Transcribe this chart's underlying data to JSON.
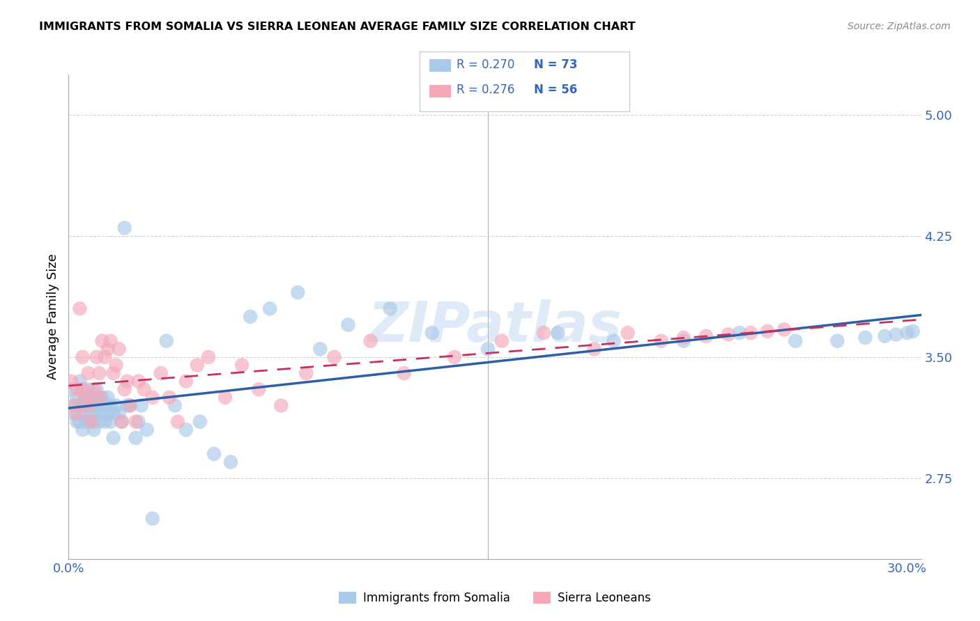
{
  "title": "IMMIGRANTS FROM SOMALIA VS SIERRA LEONEAN AVERAGE FAMILY SIZE CORRELATION CHART",
  "source": "Source: ZipAtlas.com",
  "ylabel": "Average Family Size",
  "yticks": [
    2.75,
    3.5,
    4.25,
    5.0
  ],
  "xlim": [
    0.0,
    0.305
  ],
  "ylim": [
    2.25,
    5.25
  ],
  "legend_r1": "0.270",
  "legend_n1": "73",
  "legend_r2": "0.276",
  "legend_n2": "56",
  "color_somalia": "#aac8e8",
  "color_sierra": "#f4a8b8",
  "color_somalia_line": "#2c5fa8",
  "color_sierra_line": "#c83060",
  "color_blue": "#3366bb",
  "watermark": "ZIPatlas",
  "somalia_x": [
    0.001,
    0.002,
    0.002,
    0.003,
    0.003,
    0.004,
    0.004,
    0.004,
    0.005,
    0.005,
    0.005,
    0.006,
    0.006,
    0.006,
    0.007,
    0.007,
    0.007,
    0.008,
    0.008,
    0.009,
    0.009,
    0.009,
    0.01,
    0.01,
    0.01,
    0.011,
    0.011,
    0.012,
    0.012,
    0.013,
    0.013,
    0.014,
    0.014,
    0.015,
    0.015,
    0.016,
    0.016,
    0.017,
    0.018,
    0.019,
    0.02,
    0.021,
    0.022,
    0.024,
    0.025,
    0.026,
    0.028,
    0.03,
    0.035,
    0.038,
    0.042,
    0.047,
    0.052,
    0.058,
    0.065,
    0.072,
    0.082,
    0.09,
    0.1,
    0.115,
    0.13,
    0.15,
    0.175,
    0.195,
    0.22,
    0.24,
    0.26,
    0.275,
    0.285,
    0.292,
    0.296,
    0.3,
    0.302
  ],
  "somalia_y": [
    3.3,
    3.2,
    3.15,
    3.1,
    3.25,
    3.35,
    3.2,
    3.1,
    3.3,
    3.15,
    3.05,
    3.25,
    3.2,
    3.1,
    3.3,
    3.2,
    3.1,
    3.25,
    3.15,
    3.05,
    3.2,
    3.1,
    3.25,
    3.15,
    3.3,
    3.2,
    3.1,
    3.25,
    3.15,
    3.2,
    3.1,
    3.25,
    3.15,
    3.1,
    3.2,
    3.0,
    3.15,
    3.2,
    3.15,
    3.1,
    4.3,
    3.2,
    3.2,
    3.0,
    3.1,
    3.2,
    3.05,
    2.5,
    3.6,
    3.2,
    3.05,
    3.1,
    2.9,
    2.85,
    3.75,
    3.8,
    3.9,
    3.55,
    3.7,
    3.8,
    3.65,
    3.55,
    3.65,
    3.6,
    3.6,
    3.65,
    3.6,
    3.6,
    3.62,
    3.63,
    3.64,
    3.65,
    3.66
  ],
  "sierra_x": [
    0.001,
    0.002,
    0.003,
    0.003,
    0.004,
    0.005,
    0.005,
    0.006,
    0.007,
    0.007,
    0.008,
    0.009,
    0.01,
    0.011,
    0.011,
    0.012,
    0.013,
    0.014,
    0.015,
    0.016,
    0.017,
    0.018,
    0.019,
    0.02,
    0.021,
    0.022,
    0.024,
    0.025,
    0.027,
    0.03,
    0.033,
    0.036,
    0.039,
    0.042,
    0.046,
    0.05,
    0.056,
    0.062,
    0.068,
    0.076,
    0.085,
    0.095,
    0.108,
    0.12,
    0.138,
    0.155,
    0.17,
    0.188,
    0.2,
    0.212,
    0.22,
    0.228,
    0.236,
    0.244,
    0.25,
    0.256
  ],
  "sierra_y": [
    3.35,
    3.2,
    3.3,
    3.15,
    3.8,
    3.3,
    3.5,
    3.25,
    3.4,
    3.2,
    3.1,
    3.3,
    3.5,
    3.4,
    3.25,
    3.6,
    3.5,
    3.55,
    3.6,
    3.4,
    3.45,
    3.55,
    3.1,
    3.3,
    3.35,
    3.2,
    3.1,
    3.35,
    3.3,
    3.25,
    3.4,
    3.25,
    3.1,
    3.35,
    3.45,
    3.5,
    3.25,
    3.45,
    3.3,
    3.2,
    3.4,
    3.5,
    3.6,
    3.4,
    3.5,
    3.6,
    3.65,
    3.55,
    3.65,
    3.6,
    3.62,
    3.63,
    3.64,
    3.65,
    3.66,
    3.67
  ]
}
